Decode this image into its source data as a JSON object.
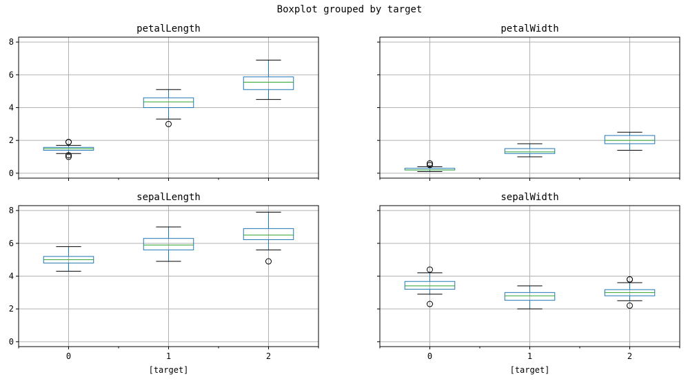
{
  "suptitle": "Boxplot grouped by target",
  "colors": {
    "box": "#1f77b4",
    "median": "#2ca02c",
    "whisker": "#000000",
    "grid": "#b0b0b0"
  },
  "chart_data": [
    {
      "type": "box",
      "title": "petalLength",
      "categories": [
        "0",
        "1",
        "2"
      ],
      "xlabel": "",
      "ylim": [
        -0.3,
        8.3
      ],
      "yticks": [
        0,
        2,
        4,
        6,
        8
      ],
      "grid": true,
      "boxes": [
        {
          "category": "0",
          "whislo": 1.2,
          "q1": 1.4,
          "med": 1.5,
          "q3": 1.575,
          "whishi": 1.7,
          "fliers": [
            1.0,
            1.1,
            1.9,
            1.9
          ]
        },
        {
          "category": "1",
          "whislo": 3.3,
          "q1": 4.0,
          "med": 4.35,
          "q3": 4.6,
          "whishi": 5.1,
          "fliers": [
            3.0
          ]
        },
        {
          "category": "2",
          "whislo": 4.5,
          "q1": 5.1,
          "med": 5.55,
          "q3": 5.875,
          "whishi": 6.9,
          "fliers": []
        }
      ]
    },
    {
      "type": "box",
      "title": "petalWidth",
      "categories": [
        "0",
        "1",
        "2"
      ],
      "xlabel": "",
      "ylim": [
        -0.3,
        8.3
      ],
      "yticks": [
        0,
        2,
        4,
        6,
        8
      ],
      "grid": true,
      "boxes": [
        {
          "category": "0",
          "whislo": 0.1,
          "q1": 0.2,
          "med": 0.2,
          "q3": 0.3,
          "whishi": 0.4,
          "fliers": [
            0.5,
            0.6
          ]
        },
        {
          "category": "1",
          "whislo": 1.0,
          "q1": 1.2,
          "med": 1.3,
          "q3": 1.5,
          "whishi": 1.8,
          "fliers": []
        },
        {
          "category": "2",
          "whislo": 1.4,
          "q1": 1.8,
          "med": 2.0,
          "q3": 2.3,
          "whishi": 2.5,
          "fliers": []
        }
      ]
    },
    {
      "type": "box",
      "title": "sepalLength",
      "categories": [
        "0",
        "1",
        "2"
      ],
      "xlabel": "[target]",
      "ylim": [
        -0.3,
        8.3
      ],
      "yticks": [
        0,
        2,
        4,
        6,
        8
      ],
      "grid": true,
      "boxes": [
        {
          "category": "0",
          "whislo": 4.3,
          "q1": 4.8,
          "med": 5.0,
          "q3": 5.2,
          "whishi": 5.8,
          "fliers": []
        },
        {
          "category": "1",
          "whislo": 4.9,
          "q1": 5.6,
          "med": 5.9,
          "q3": 6.3,
          "whishi": 7.0,
          "fliers": []
        },
        {
          "category": "2",
          "whislo": 5.6,
          "q1": 6.225,
          "med": 6.5,
          "q3": 6.9,
          "whishi": 7.9,
          "fliers": [
            4.9
          ]
        }
      ]
    },
    {
      "type": "box",
      "title": "sepalWidth",
      "categories": [
        "0",
        "1",
        "2"
      ],
      "xlabel": "[target]",
      "ylim": [
        -0.3,
        8.3
      ],
      "yticks": [
        0,
        2,
        4,
        6,
        8
      ],
      "grid": true,
      "boxes": [
        {
          "category": "0",
          "whislo": 2.9,
          "q1": 3.2,
          "med": 3.4,
          "q3": 3.675,
          "whishi": 4.2,
          "fliers": [
            2.3,
            4.4
          ]
        },
        {
          "category": "1",
          "whislo": 2.0,
          "q1": 2.525,
          "med": 2.8,
          "q3": 3.0,
          "whishi": 3.4,
          "fliers": []
        },
        {
          "category": "2",
          "whislo": 2.5,
          "q1": 2.8,
          "med": 3.0,
          "q3": 3.175,
          "whishi": 3.6,
          "fliers": [
            2.2,
            3.8,
            3.8
          ]
        }
      ]
    }
  ]
}
